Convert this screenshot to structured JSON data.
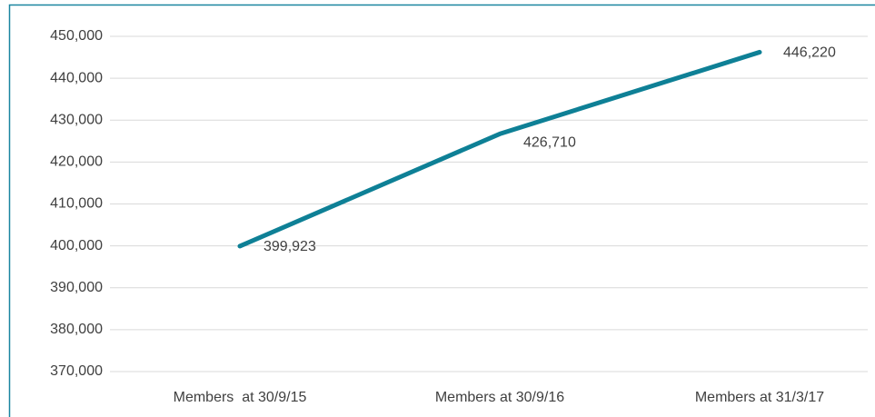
{
  "chart_data": {
    "type": "line",
    "categories": [
      "Members  at 30/9/15",
      "Members at 30/9/16",
      "Members at 31/3/17"
    ],
    "series": [
      {
        "name": "Members",
        "color": "#0e8096",
        "values": [
          399923,
          426710,
          446220
        ],
        "value_labels": [
          "399,923",
          "426,710",
          "446,220"
        ]
      }
    ],
    "ylim": [
      370000,
      450000
    ],
    "yticks": [
      {
        "value": 370000,
        "label": "370,000"
      },
      {
        "value": 380000,
        "label": "380,000"
      },
      {
        "value": 390000,
        "label": "390,000"
      },
      {
        "value": 400000,
        "label": "400,000"
      },
      {
        "value": 410000,
        "label": "410,000"
      },
      {
        "value": 420000,
        "label": "420,000"
      },
      {
        "value": 430000,
        "label": "430,000"
      },
      {
        "value": 440000,
        "label": "440,000"
      },
      {
        "value": 450000,
        "label": "450,000"
      }
    ],
    "grid": true
  }
}
